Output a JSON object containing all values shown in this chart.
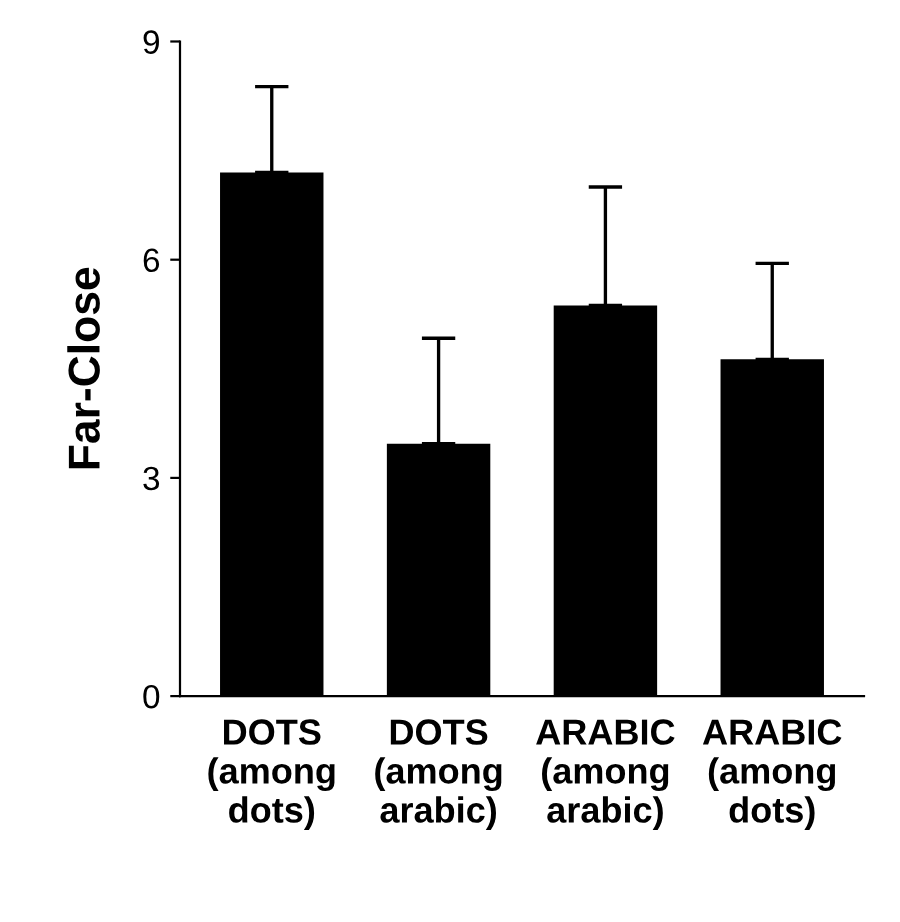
{
  "chart_data": {
    "type": "bar",
    "ylabel": "Far-Close",
    "categories": [
      "DOTS\n(among\ndots)",
      "DOTS\n(among\narabic)",
      "ARABIC\n(among\narabic)",
      "ARABIC\n(among\ndots)"
    ],
    "values": [
      7.2,
      3.47,
      5.37,
      4.63
    ],
    "errors": [
      [
        7.2,
        8.38
      ],
      [
        3.47,
        4.92
      ],
      [
        5.37,
        7.0
      ],
      [
        4.63,
        5.95
      ]
    ],
    "color": "#000000",
    "ylim": [
      0,
      9
    ],
    "yticks": [
      0,
      3,
      6,
      9
    ],
    "grid": false
  }
}
